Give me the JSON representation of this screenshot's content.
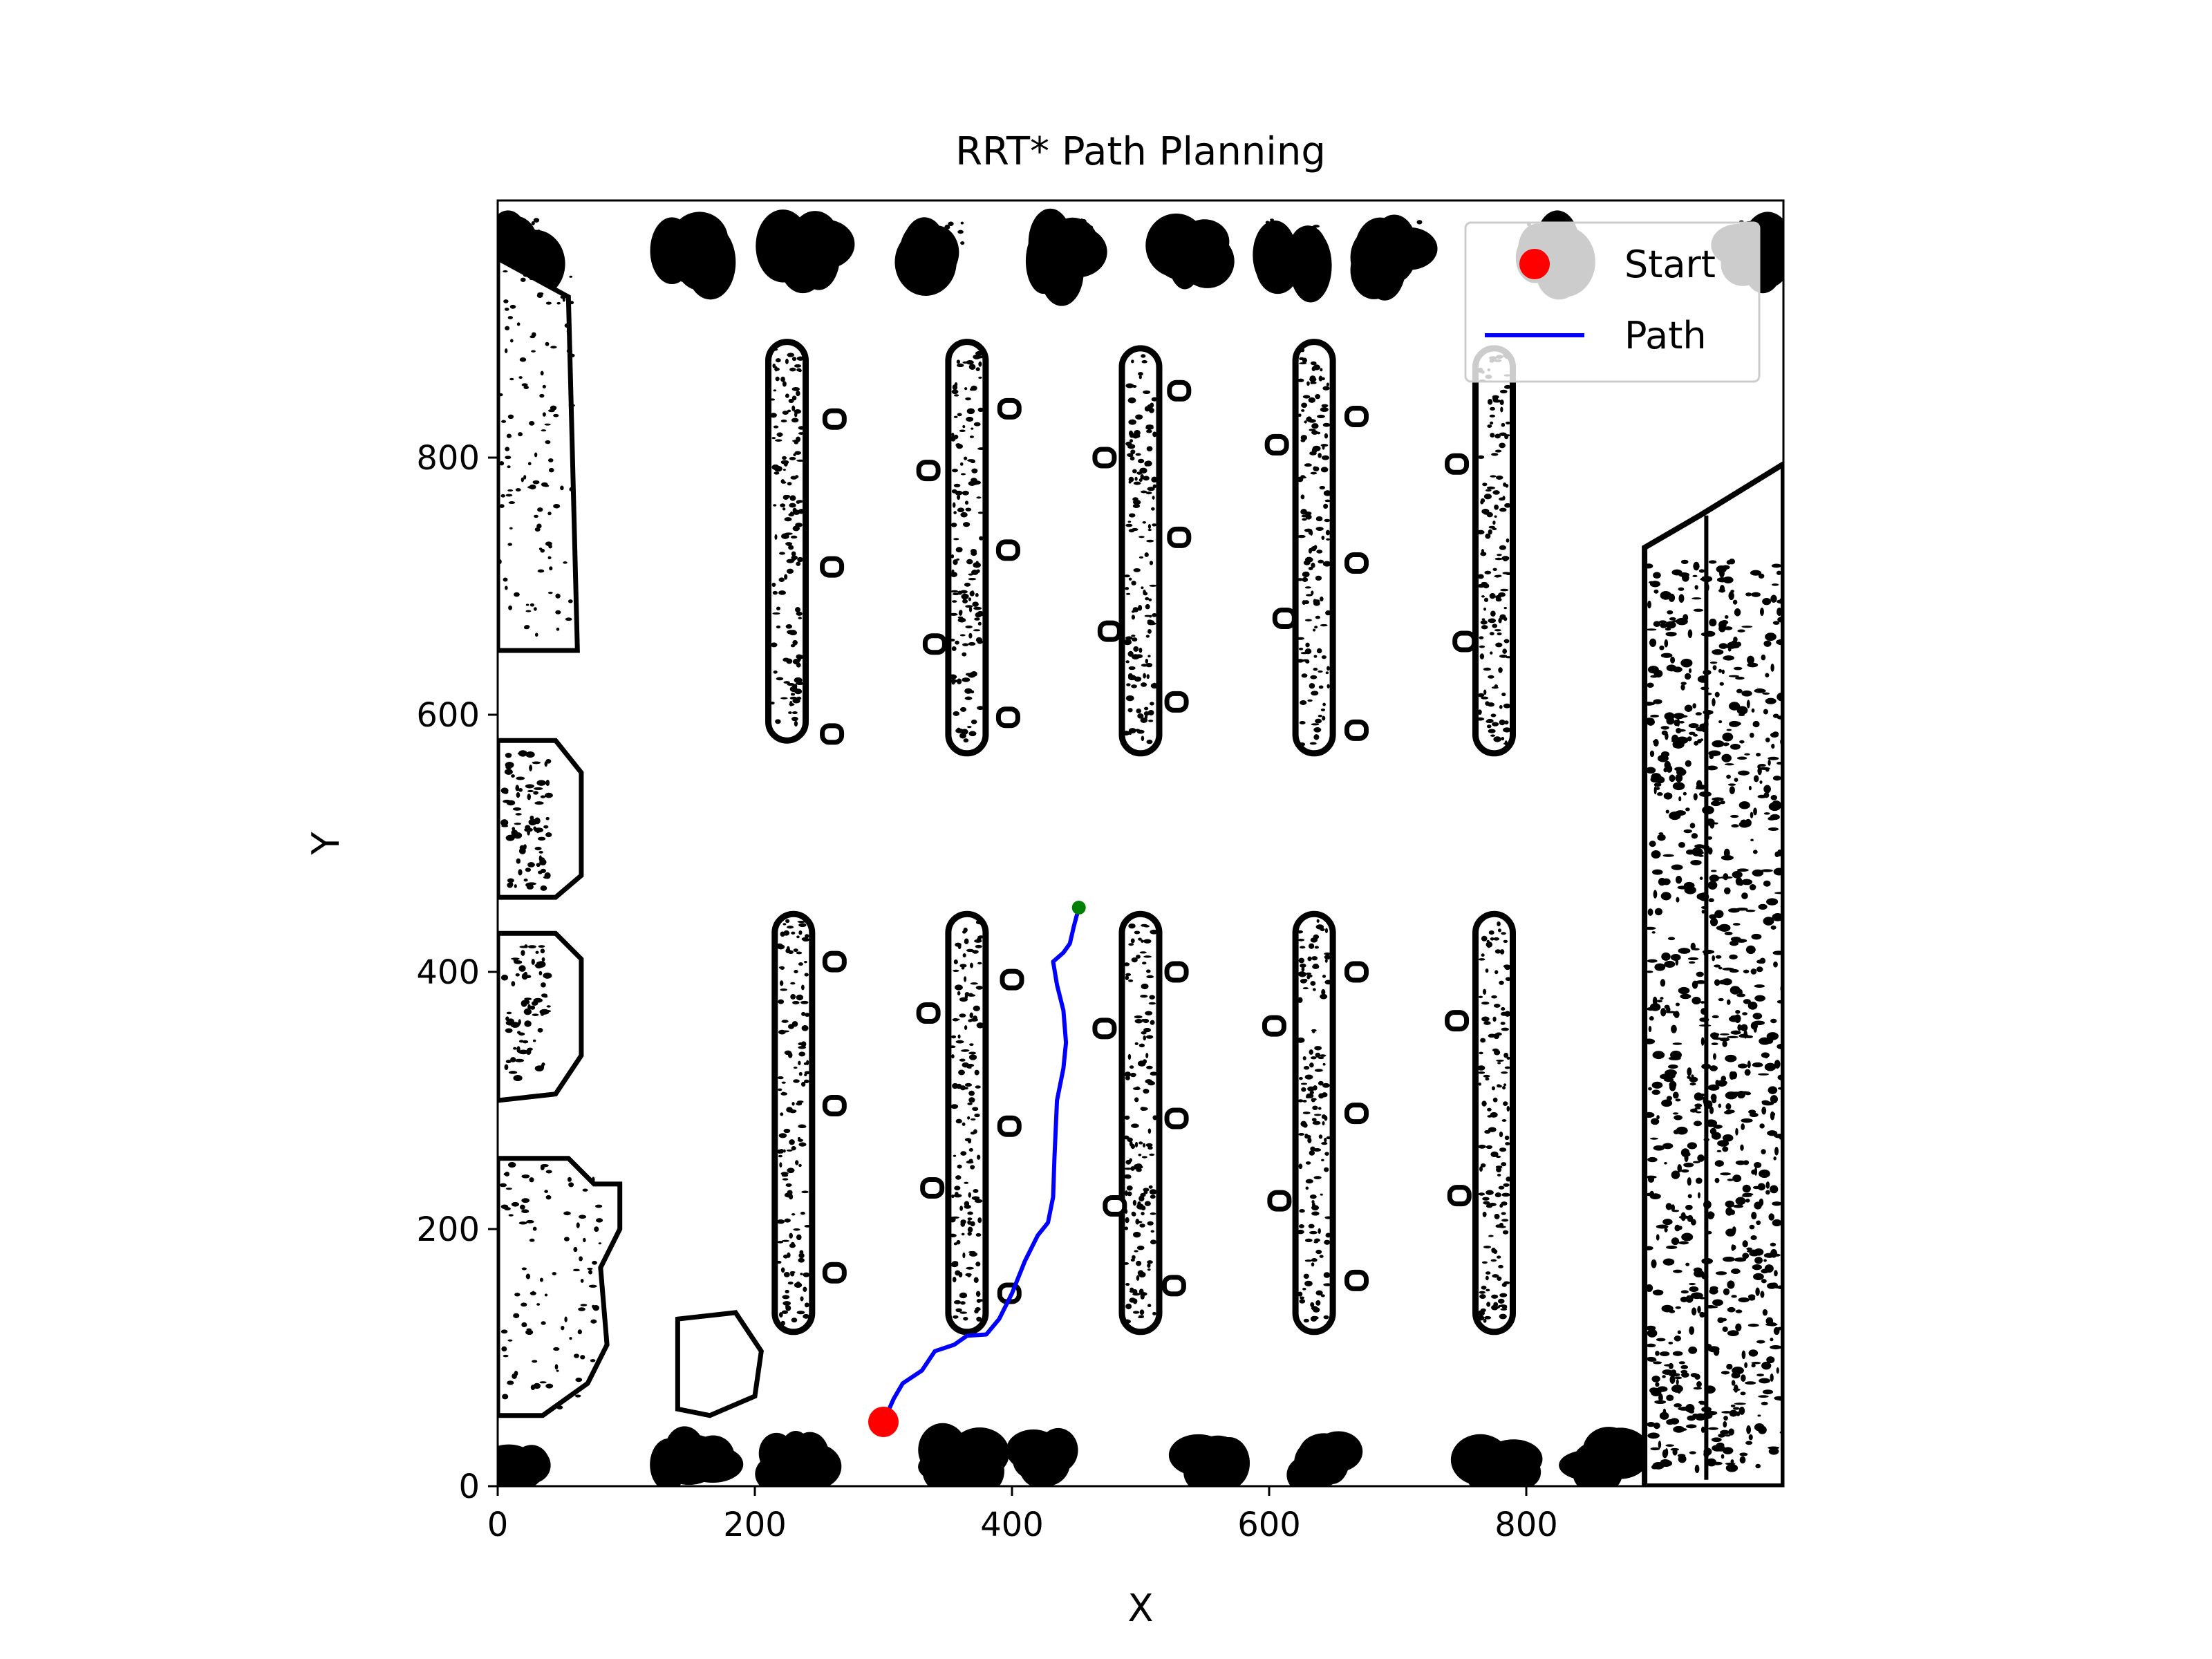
{
  "chart_data": {
    "type": "scatter",
    "title": "RRT* Path Planning",
    "xlabel": "X",
    "ylabel": "Y",
    "xlim": [
      0,
      1000
    ],
    "ylim": [
      0,
      1000
    ],
    "xticks": [
      "0",
      "200",
      "400",
      "600",
      "800"
    ],
    "yticks": [
      "0",
      "200",
      "400",
      "600",
      "800"
    ],
    "grid": false,
    "legend_position": "top-right",
    "background": "binary occupancy map (parking lot with tree rows, parked-car rows, buildings)",
    "series": [
      {
        "name": "Start",
        "kind": "marker",
        "color": "#ff0000",
        "points": [
          {
            "x": 300,
            "y": 50
          }
        ]
      },
      {
        "name": "Path",
        "kind": "line",
        "color": "#0000ff",
        "points": [
          {
            "x": 300,
            "y": 50
          },
          {
            "x": 308,
            "y": 68
          },
          {
            "x": 315,
            "y": 80
          },
          {
            "x": 330,
            "y": 90
          },
          {
            "x": 340,
            "y": 105
          },
          {
            "x": 355,
            "y": 110
          },
          {
            "x": 365,
            "y": 117
          },
          {
            "x": 380,
            "y": 118
          },
          {
            "x": 390,
            "y": 130
          },
          {
            "x": 400,
            "y": 150
          },
          {
            "x": 410,
            "y": 175
          },
          {
            "x": 420,
            "y": 195
          },
          {
            "x": 428,
            "y": 205
          },
          {
            "x": 432,
            "y": 225
          },
          {
            "x": 433,
            "y": 255
          },
          {
            "x": 435,
            "y": 300
          },
          {
            "x": 440,
            "y": 325
          },
          {
            "x": 442,
            "y": 345
          },
          {
            "x": 440,
            "y": 370
          },
          {
            "x": 435,
            "y": 390
          },
          {
            "x": 432,
            "y": 408
          },
          {
            "x": 440,
            "y": 415
          },
          {
            "x": 445,
            "y": 422
          },
          {
            "x": 448,
            "y": 435
          },
          {
            "x": 452,
            "y": 450
          }
        ]
      },
      {
        "name": "",
        "kind": "goal-marker",
        "color": "#008000",
        "points": [
          {
            "x": 452,
            "y": 450
          }
        ]
      }
    ],
    "legend": [
      {
        "label": "Start",
        "marker": "circle",
        "color": "#ff0000"
      },
      {
        "label": "Path",
        "marker": "line",
        "color": "#0000ff"
      }
    ]
  }
}
